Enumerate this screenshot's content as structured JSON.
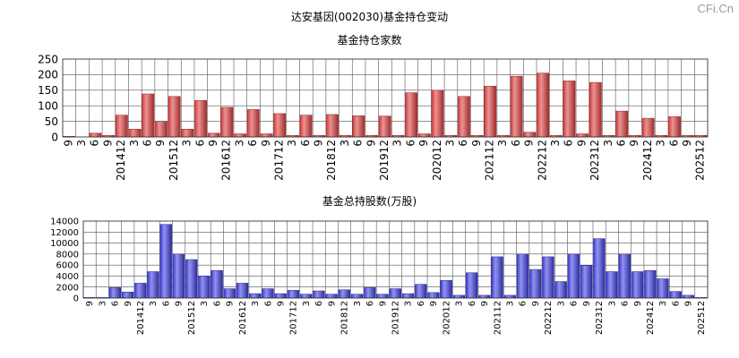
{
  "watermark": "CFi.Cn",
  "title": "达安基因(002030)基金持仓变动",
  "chart_data": [
    {
      "type": "bar",
      "title": "基金持仓家数",
      "color": "#d83a3a",
      "ylim": [
        0,
        250
      ],
      "yticks": [
        0,
        50,
        100,
        150,
        200,
        250
      ],
      "grid": true,
      "xticklabels": [
        "9",
        "3",
        "6",
        "9",
        "201412",
        "3",
        "6",
        "9",
        "201512",
        "3",
        "6",
        "9",
        "201612",
        "3",
        "6",
        "9",
        "201712",
        "3",
        "6",
        "9",
        "201812",
        "3",
        "6",
        "9",
        "201912",
        "3",
        "6",
        "9",
        "202012",
        "3",
        "6",
        "9",
        "202112",
        "3",
        "6",
        "9",
        "202212",
        "3",
        "6",
        "9",
        "202312",
        "3",
        "6",
        "9",
        "202412",
        "3",
        "6",
        "9",
        "202512"
      ],
      "values": [
        2,
        0,
        12,
        5,
        70,
        25,
        138,
        50,
        130,
        25,
        117,
        12,
        95,
        10,
        88,
        10,
        75,
        5,
        70,
        5,
        72,
        5,
        68,
        5,
        67,
        5,
        142,
        10,
        150,
        5,
        130,
        5,
        163,
        5,
        195,
        15,
        205,
        5,
        180,
        10,
        175,
        5,
        83,
        5,
        60,
        5,
        65,
        5,
        5
      ]
    },
    {
      "type": "bar",
      "title": "基金总持股数(万股)",
      "color": "#3a3adc",
      "ylim": [
        0,
        14000
      ],
      "yticks": [
        0,
        2000,
        4000,
        6000,
        8000,
        10000,
        12000,
        14000
      ],
      "grid": true,
      "xticklabels": [
        "9",
        "3",
        "6",
        "9",
        "201412",
        "3",
        "6",
        "9",
        "201512",
        "3",
        "6",
        "9",
        "201612",
        "3",
        "6",
        "9",
        "201712",
        "3",
        "6",
        "9",
        "201812",
        "3",
        "6",
        "9",
        "201912",
        "3",
        "6",
        "9",
        "202012",
        "3",
        "6",
        "9",
        "202112",
        "3",
        "6",
        "9",
        "202212",
        "3",
        "6",
        "9",
        "202312",
        "3",
        "6",
        "9",
        "202412",
        "3",
        "6",
        "9",
        "202512"
      ],
      "values": [
        100,
        100,
        1900,
        1100,
        2700,
        4800,
        13400,
        8000,
        7000,
        4000,
        5000,
        1700,
        2700,
        800,
        1700,
        800,
        1400,
        700,
        1300,
        700,
        1500,
        700,
        1900,
        700,
        1700,
        800,
        2500,
        1000,
        3200,
        500,
        4600,
        500,
        7500,
        500,
        8000,
        5200,
        7500,
        3000,
        8000,
        5900,
        10800,
        4800,
        8000,
        4800,
        5000,
        3500,
        1200,
        500,
        100
      ]
    }
  ]
}
